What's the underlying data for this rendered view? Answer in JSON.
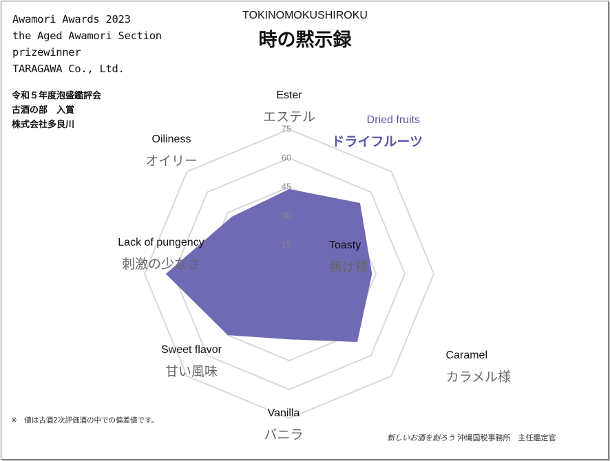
{
  "title": {
    "romanized": "TOKINOMOKUSHIROKU",
    "japanese": "時の黙示録"
  },
  "award_en": {
    "line1": "Awamori Awards 2023",
    "line2": "the Aged Awamori Section",
    "line3": "prizewinner",
    "line4": "TARAGAWA Co., Ltd."
  },
  "award_jp": {
    "line1": "令和５年度泡盛鑑評会",
    "line2": "古酒の部　入賞",
    "line3": "株式会社多良川"
  },
  "footnote": "※　値は古酒2次評価酒の中での偏差値です。",
  "credit": {
    "slogan": "新しいお酒を創ろう",
    "office": "沖縄国税事務所　主任鑑定官"
  },
  "colors": {
    "fill": "#6f6ab4",
    "highlight": "#5a55a8",
    "grid": "#d8d8d8",
    "label_en": "#111111",
    "label_jp": "#666666"
  },
  "chart_data": {
    "type": "radar",
    "rlim": [
      0,
      75
    ],
    "rticks": [
      "15",
      "30",
      "45",
      "60",
      "75"
    ],
    "axes": [
      {
        "en": "Ester",
        "jp": "エステル",
        "highlight": false
      },
      {
        "en": "Dried fruits",
        "jp": "ドライフルーツ",
        "highlight": true
      },
      {
        "en": "Toasty",
        "jp": "焦げ様",
        "highlight": false
      },
      {
        "en": "Caramel",
        "jp": "カラメル様",
        "highlight": false
      },
      {
        "en": "Vanilla",
        "jp": "バニラ",
        "highlight": false
      },
      {
        "en": "Sweet flavor",
        "jp": "甘い風味",
        "highlight": false
      },
      {
        "en": "Lack of pungency",
        "jp": "刺激の少なさ",
        "highlight": false
      },
      {
        "en": "Oiliness",
        "jp": "オイリー",
        "highlight": false
      }
    ],
    "values": [
      44,
      52,
      43,
      50,
      34,
      45,
      64,
      42
    ]
  }
}
